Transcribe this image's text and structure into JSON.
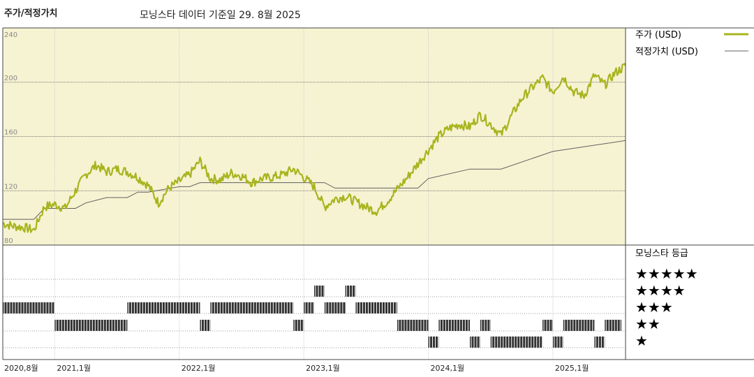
{
  "header": {
    "title": "주가/적정가치",
    "subtitle": "모닝스타 데이터 기준일 29. 8월 2025"
  },
  "legend": {
    "price_label": "주가 (USD)",
    "fair_value_label": "적정가치 (USD)",
    "rating_title": "모닝스타 등급",
    "ratings": [
      "★★★★★",
      "★★★★",
      "★★★",
      "★★",
      "★"
    ]
  },
  "colors": {
    "price": "#a8b41e",
    "fair_value": "#606060",
    "panel_bg": "#f6f3d2",
    "rating_bar": "#333333"
  },
  "chart_data": {
    "type": "line",
    "x_start": "2020-08",
    "x_end": "2025-08",
    "ylim": [
      80,
      240
    ],
    "yticks": [
      80,
      120,
      160,
      200,
      240
    ],
    "grid": true,
    "legend_position": "right",
    "xticks": [
      {
        "date": "2020-08",
        "label": "2020,8월"
      },
      {
        "date": "2021-01",
        "label": "2021,1월"
      },
      {
        "date": "2022-01",
        "label": "2022,1월"
      },
      {
        "date": "2023-01",
        "label": "2023,1월"
      },
      {
        "date": "2024-01",
        "label": "2024,1월"
      },
      {
        "date": "2025-01",
        "label": "2025,1월"
      }
    ],
    "series": [
      {
        "name": "주가 (USD)",
        "x": [
          "2020-08",
          "2020-09",
          "2020-10",
          "2020-11",
          "2020-12",
          "2021-01",
          "2021-02",
          "2021-03",
          "2021-04",
          "2021-05",
          "2021-06",
          "2021-07",
          "2021-08",
          "2021-09",
          "2021-10",
          "2021-11",
          "2021-12",
          "2022-01",
          "2022-02",
          "2022-03",
          "2022-04",
          "2022-05",
          "2022-06",
          "2022-07",
          "2022-08",
          "2022-09",
          "2022-10",
          "2022-11",
          "2022-12",
          "2023-01",
          "2023-02",
          "2023-03",
          "2023-04",
          "2023-05",
          "2023-06",
          "2023-07",
          "2023-08",
          "2023-09",
          "2023-10",
          "2023-11",
          "2023-12",
          "2024-01",
          "2024-02",
          "2024-03",
          "2024-04",
          "2024-05",
          "2024-06",
          "2024-07",
          "2024-08",
          "2024-09",
          "2024-10",
          "2024-11",
          "2024-12",
          "2025-01",
          "2025-02",
          "2025-03",
          "2025-04",
          "2025-05",
          "2025-06",
          "2025-07",
          "2025-08"
        ],
        "values": [
          96,
          94,
          93,
          91,
          108,
          110,
          107,
          120,
          132,
          139,
          134,
          136,
          134,
          130,
          124,
          111,
          122,
          127,
          132,
          142,
          129,
          128,
          133,
          131,
          126,
          129,
          130,
          132,
          136,
          130,
          123,
          108,
          114,
          116,
          112,
          108,
          105,
          112,
          121,
          130,
          140,
          150,
          160,
          166,
          169,
          167,
          176,
          169,
          161,
          175,
          188,
          196,
          203,
          193,
          204,
          193,
          190,
          205,
          198,
          207,
          212
        ]
      },
      {
        "name": "적정가치 (USD)",
        "x": [
          "2020-08",
          "2020-11",
          "2020-12",
          "2021-03",
          "2021-04",
          "2021-06",
          "2021-08",
          "2021-09",
          "2021-10",
          "2022-01",
          "2022-02",
          "2022-03",
          "2023-01",
          "2023-03",
          "2023-04",
          "2023-09",
          "2023-12",
          "2024-01",
          "2024-05",
          "2024-08",
          "2025-01",
          "2025-08"
        ],
        "values": [
          99,
          99,
          107,
          107,
          111,
          115,
          115,
          119,
          119,
          123,
          123,
          126,
          126,
          126,
          122,
          122,
          122,
          129,
          136,
          136,
          149,
          157
        ]
      }
    ],
    "rating_levels": [
      5,
      4,
      3,
      2,
      1
    ],
    "rating_segments": [
      {
        "rating": 3,
        "start": "2020-08",
        "end": "2021-01"
      },
      {
        "rating": 2,
        "start": "2021-01",
        "end": "2021-08"
      },
      {
        "rating": 3,
        "start": "2021-08",
        "end": "2022-03"
      },
      {
        "rating": 2,
        "start": "2022-03",
        "end": "2022-04"
      },
      {
        "rating": 3,
        "start": "2022-04",
        "end": "2022-12"
      },
      {
        "rating": 2,
        "start": "2022-12",
        "end": "2023-01"
      },
      {
        "rating": 3,
        "start": "2023-01",
        "end": "2023-02"
      },
      {
        "rating": 4,
        "start": "2023-02",
        "end": "2023-03"
      },
      {
        "rating": 3,
        "start": "2023-03",
        "end": "2023-05"
      },
      {
        "rating": 4,
        "start": "2023-05",
        "end": "2023-06"
      },
      {
        "rating": 3,
        "start": "2023-06",
        "end": "2023-10"
      },
      {
        "rating": 2,
        "start": "2023-10",
        "end": "2024-01"
      },
      {
        "rating": 1,
        "start": "2024-01",
        "end": "2024-02"
      },
      {
        "rating": 2,
        "start": "2024-02",
        "end": "2024-05"
      },
      {
        "rating": 1,
        "start": "2024-05",
        "end": "2024-06"
      },
      {
        "rating": 2,
        "start": "2024-06",
        "end": "2024-07"
      },
      {
        "rating": 1,
        "start": "2024-07",
        "end": "2024-12"
      },
      {
        "rating": 2,
        "start": "2024-12",
        "end": "2025-01"
      },
      {
        "rating": 1,
        "start": "2025-01",
        "end": "2025-02"
      },
      {
        "rating": 2,
        "start": "2025-02",
        "end": "2025-05"
      },
      {
        "rating": 1,
        "start": "2025-05",
        "end": "2025-06"
      },
      {
        "rating": 2,
        "start": "2025-06",
        "end": "2025-08"
      }
    ]
  }
}
